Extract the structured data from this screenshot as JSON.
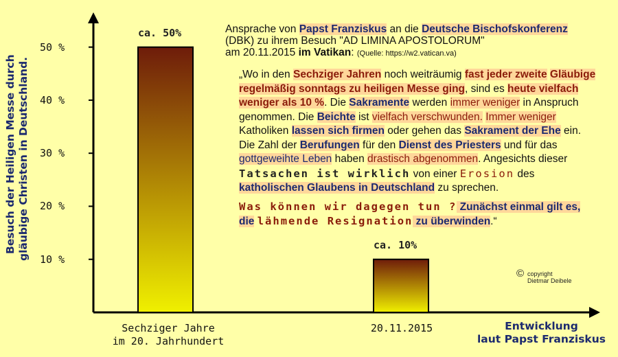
{
  "chart_data": {
    "type": "bar",
    "categories": [
      "Sechziger Jahre im 20. Jahrhundert",
      "20.11.2015"
    ],
    "values": [
      50,
      10
    ],
    "data_labels": [
      "ca. 50%",
      "ca. 10%"
    ],
    "ylabel": "Besuch der Heiligen Messe durch gläubige Christen in Deutschland.",
    "xlabel": "Entwicklung laut Papst Franziskus",
    "ylim": [
      0,
      55
    ],
    "yticks": [
      10,
      20,
      30,
      40,
      50
    ],
    "ytick_labels": [
      "10 %",
      "20 %",
      "30 %",
      "40 %",
      "50 %"
    ],
    "grid": false,
    "bar_gradient": [
      "#6e1c0a",
      "#f0f000"
    ]
  },
  "labels": {
    "ylabel_line1": "Besuch der Heiligen Messe durch",
    "ylabel_line2": "gläubige Christen in Deutschland.",
    "cat1_line1": "Sechziger Jahre",
    "cat1_line2": "im 20. Jahrhundert",
    "cat2_line1": "20.11.2015",
    "xtitle_line1": "Entwicklung",
    "xtitle_line2": "laut Papst Franziskus"
  },
  "header": {
    "l1a": "Ansprache von ",
    "l1b": "Papst Franziskus",
    "l1c": " an die ",
    "l1d": "Deutsche Bischofskonferenz",
    "l2": "(DBK) zu ihrem Besuch \"AD LIMINA APOSTOLORUM\"",
    "l3a": "am 20.11.2015 ",
    "l3b": "im Vatikan",
    "l3c": ": ",
    "l3d": "(Quelle: https://w2.vatican.va)"
  },
  "quote": {
    "p1": "„Wo in den ",
    "p2": "Sechziger Jahren",
    "p3": " noch weiträumig ",
    "p4": "fast jeder zweite",
    "p5": "Gläubige regelmäßig sonntags zu heiligen Messe ging",
    "p6": ", sind es ",
    "p7": "heute vielfach weniger als 10 %",
    "p8": ". Die ",
    "p9": "Sakramente",
    "p10": " werden ",
    "p11": "immer weniger",
    "p12": " in Anspruch genommen. Die ",
    "p13": "Beichte",
    "p14": " ist ",
    "p15": "vielfach verschwunden.",
    "p16": " ",
    "p17": "Immer weniger",
    "p18": " Katholiken ",
    "p19": "lassen sich firmen",
    "p20": " oder gehen das ",
    "p21": "Sakrament der Ehe",
    "p22": " ein. Die Zahl der ",
    "p23": "Berufungen",
    "p24": " für den ",
    "p25": "Dienst des Priesters",
    "p26": " und für das ",
    "p27": "gottgeweihte Leben",
    "p28": " haben ",
    "p29": "drastisch abgenommen",
    "p30": ". Angesichts dieser ",
    "p31": "Tatsachen ist wirklich",
    "p32": " von einer ",
    "p33": "Erosion",
    "p34": " des ",
    "p35": "katholischen Glaubens in Deutschland",
    "p36": " zu sprechen.",
    "q1": "Was können wir dagegen tun ?",
    "q2": "  Zunächst einmal gilt es, die",
    "q3": "lähmende Resignation",
    "q4": " zu überwinden",
    "q5": ".“"
  },
  "copyright": {
    "symbol": "©",
    "line1": "copyright",
    "line2": "Dietmar Deibele"
  }
}
